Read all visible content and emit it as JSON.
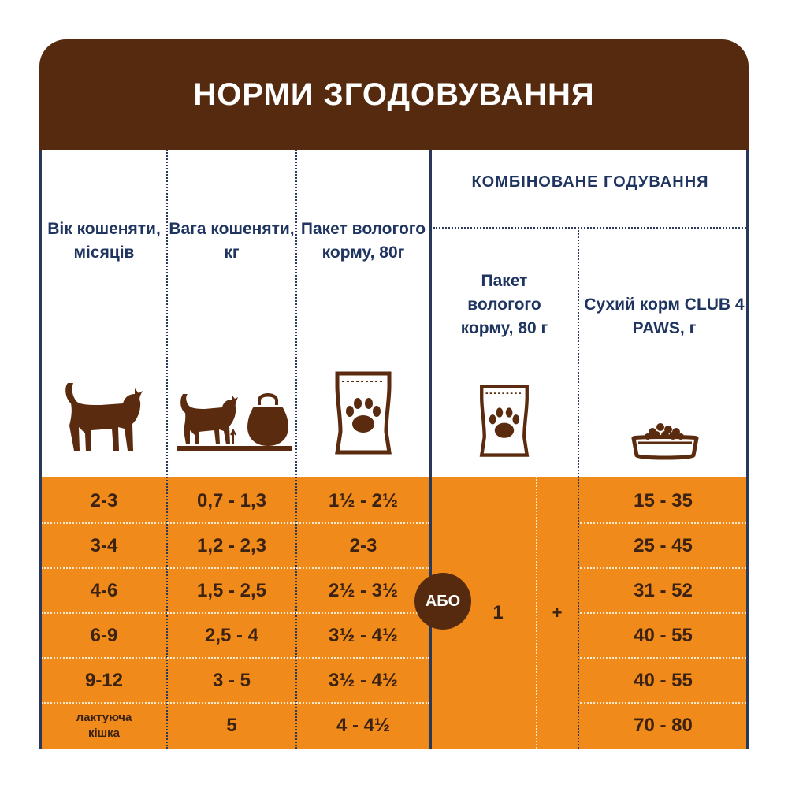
{
  "title": "НОРМИ ЗГОДОВУВАННЯ",
  "combined_header": "КОМБІНОВАНЕ ГОДУВАННЯ",
  "columns": {
    "age": "Вік кошеняти, місяців",
    "weight": "Вага кошеняти, кг",
    "wet": "Пакет вологого корму, 80г",
    "combo_wet": "Пакет вологого корму, 80 г",
    "combo_dry": "Сухий корм CLUB 4 PAWS, г"
  },
  "icons": {
    "age": "cat-icon",
    "weight": "cat-kettlebell-icon",
    "wet": "pouch-paw-icon",
    "combo_wet": "pouch-paw-icon",
    "combo_dry": "food-bowl-icon"
  },
  "rows": [
    {
      "age": "2-3",
      "weight": "0,7 - 1,3",
      "wet": "1½ - 2½",
      "dry": "15 - 35"
    },
    {
      "age": "3-4",
      "weight": "1,2 - 2,3",
      "wet": "2-3",
      "dry": "25 - 45"
    },
    {
      "age": "4-6",
      "weight": "1,5 - 2,5",
      "wet": "2½ - 3½",
      "dry": "31 - 52"
    },
    {
      "age": "6-9",
      "weight": "2,5 - 4",
      "wet": "3½ - 4½",
      "dry": "40 - 55"
    },
    {
      "age": "9-12",
      "weight": "3 - 5",
      "wet": "3½ - 4½",
      "dry": "40 - 55"
    },
    {
      "age": "лактуюча кішка",
      "weight": "5",
      "wet": "4 - 4½",
      "dry": "70 - 80"
    }
  ],
  "or_label": "АБО",
  "combo_wet_value": "1",
  "plus": "+",
  "colors": {
    "brown": "#562a0e",
    "orange": "#f08a1a",
    "navy": "#1f3560",
    "icon_brown": "#5a2b0f"
  }
}
